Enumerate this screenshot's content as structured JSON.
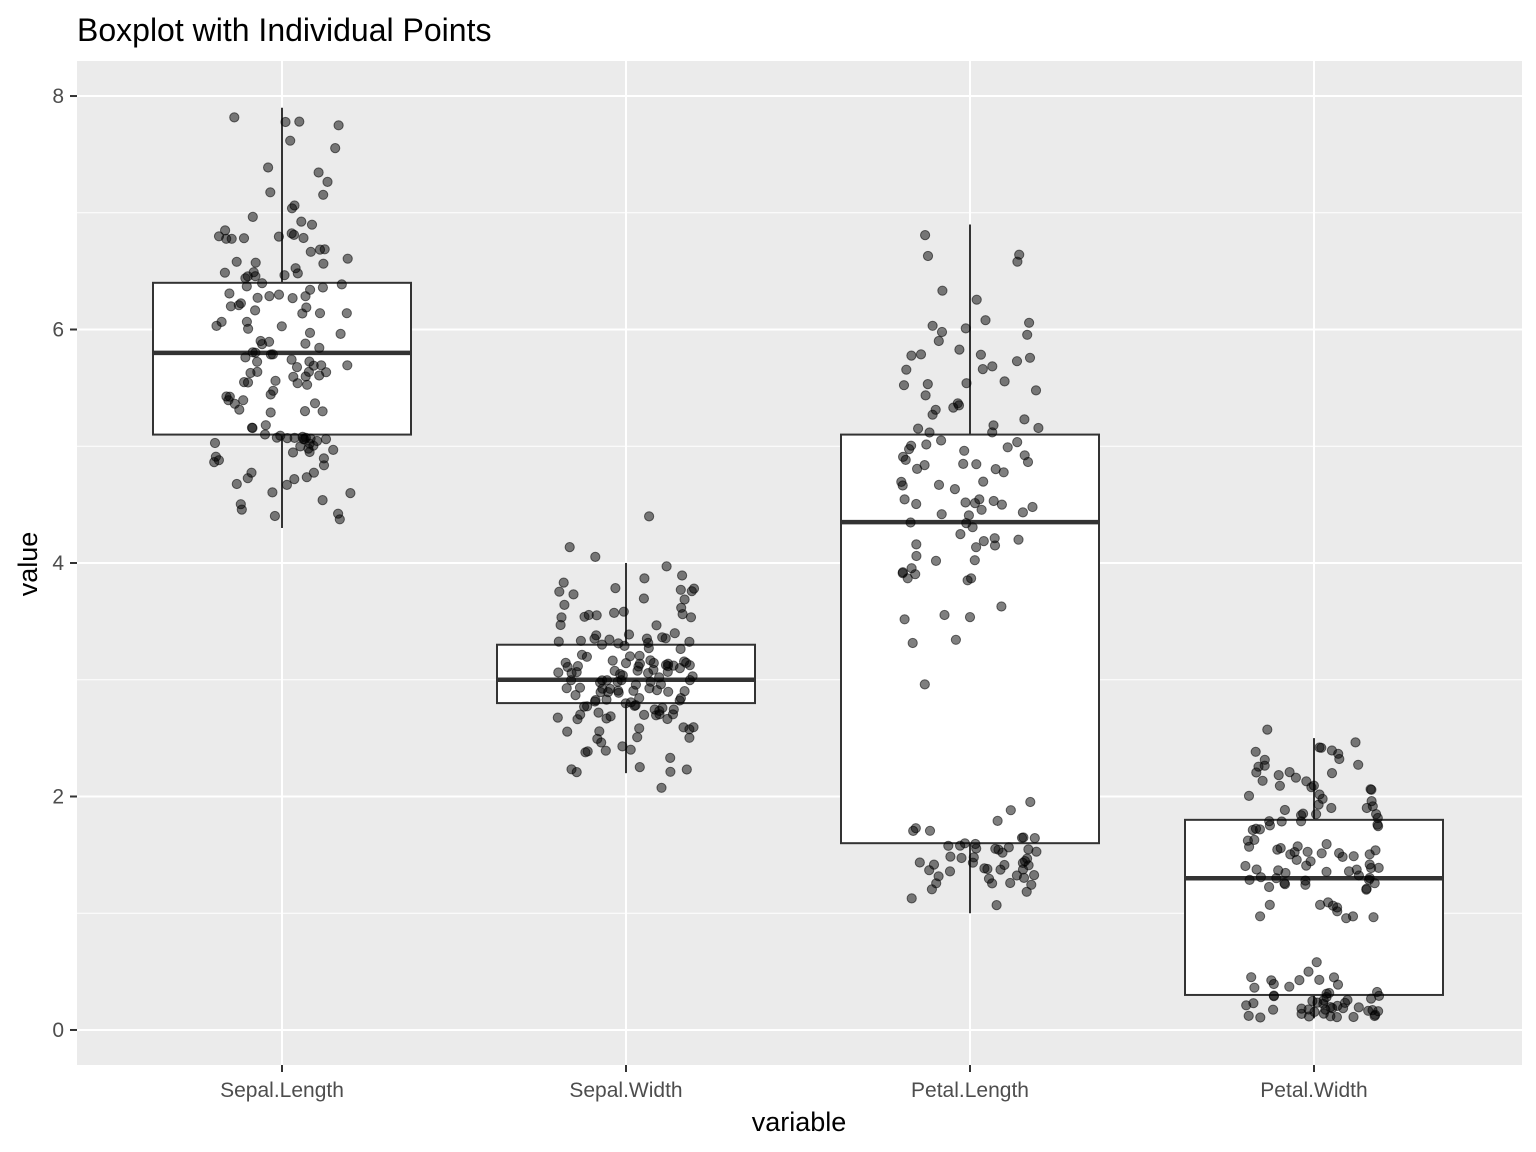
{
  "chart_data": {
    "type": "boxplot",
    "title": "Boxplot with Individual Points",
    "xlabel": "variable",
    "ylabel": "value",
    "ylim": [
      -0.3,
      8.3
    ],
    "yticks": [
      0,
      2,
      4,
      6,
      8
    ],
    "grid": true,
    "legend": "none",
    "categories": [
      "Sepal.Length",
      "Sepal.Width",
      "Petal.Length",
      "Petal.Width"
    ],
    "boxes": [
      {
        "category": "Sepal.Length",
        "min": 4.3,
        "q1": 5.1,
        "median": 5.8,
        "q3": 6.4,
        "max": 7.9
      },
      {
        "category": "Sepal.Width",
        "min": 2.2,
        "q1": 2.8,
        "median": 3.0,
        "q3": 3.3,
        "max": 4.0
      },
      {
        "category": "Petal.Length",
        "min": 1.0,
        "q1": 1.6,
        "median": 4.35,
        "q3": 5.1,
        "max": 6.9
      },
      {
        "category": "Petal.Width",
        "min": 0.1,
        "q1": 0.3,
        "median": 1.3,
        "q3": 1.8,
        "max": 2.5
      }
    ],
    "points": {
      "Sepal.Length": [
        5.1,
        4.9,
        4.7,
        4.6,
        5.0,
        5.4,
        4.6,
        5.0,
        4.4,
        4.9,
        5.4,
        4.8,
        4.8,
        4.3,
        5.8,
        5.7,
        5.4,
        5.1,
        5.7,
        5.1,
        5.4,
        5.1,
        4.6,
        5.1,
        4.8,
        5.0,
        5.0,
        5.2,
        5.2,
        4.7,
        4.8,
        5.4,
        5.2,
        5.5,
        4.9,
        5.0,
        5.5,
        4.9,
        4.4,
        5.1,
        5.0,
        4.5,
        4.4,
        5.0,
        5.1,
        4.8,
        5.1,
        4.6,
        5.3,
        5.0,
        7.0,
        6.4,
        6.9,
        5.5,
        6.5,
        5.7,
        6.3,
        4.9,
        6.6,
        5.2,
        5.0,
        5.9,
        6.0,
        6.1,
        5.6,
        6.7,
        5.6,
        5.8,
        6.2,
        5.6,
        5.9,
        6.1,
        6.3,
        6.1,
        6.4,
        6.6,
        6.8,
        6.7,
        6.0,
        5.7,
        5.5,
        5.5,
        5.8,
        6.0,
        5.4,
        6.0,
        6.7,
        6.3,
        5.6,
        5.5,
        5.5,
        6.1,
        5.8,
        5.0,
        5.6,
        5.7,
        5.7,
        6.2,
        5.1,
        5.7,
        6.3,
        5.8,
        7.1,
        6.3,
        6.5,
        7.6,
        4.9,
        7.3,
        6.7,
        7.2,
        6.5,
        6.4,
        6.8,
        5.7,
        5.8,
        6.4,
        6.5,
        7.7,
        7.7,
        6.0,
        6.9,
        5.6,
        7.7,
        6.3,
        6.7,
        7.2,
        6.2,
        6.1,
        6.4,
        7.2,
        7.4,
        7.9,
        6.4,
        6.3,
        6.1,
        7.7,
        6.3,
        6.4,
        6.0,
        6.9,
        6.7,
        6.9,
        5.8,
        6.8,
        6.7,
        6.7,
        6.3,
        6.5,
        6.2,
        5.9
      ],
      "Sepal.Width": [
        3.5,
        3.0,
        3.2,
        3.1,
        3.6,
        3.9,
        3.4,
        3.4,
        2.9,
        3.1,
        3.7,
        3.4,
        3.0,
        3.0,
        4.0,
        4.4,
        3.9,
        3.5,
        3.8,
        3.8,
        3.4,
        3.7,
        3.6,
        3.3,
        3.4,
        3.0,
        3.4,
        3.5,
        3.4,
        3.2,
        3.1,
        3.4,
        4.1,
        4.2,
        3.1,
        3.2,
        3.5,
        3.6,
        3.0,
        3.4,
        3.5,
        2.3,
        3.2,
        3.5,
        3.8,
        3.0,
        3.8,
        3.2,
        3.7,
        3.3,
        3.2,
        3.2,
        3.1,
        2.3,
        2.8,
        2.8,
        3.3,
        2.4,
        2.9,
        2.7,
        2.0,
        3.0,
        2.2,
        2.9,
        2.9,
        3.1,
        3.0,
        2.7,
        2.2,
        2.5,
        3.2,
        2.8,
        2.5,
        2.8,
        2.9,
        3.0,
        2.8,
        3.0,
        2.9,
        2.6,
        2.4,
        2.4,
        2.7,
        2.7,
        3.0,
        3.4,
        3.1,
        2.3,
        3.0,
        2.5,
        2.6,
        3.0,
        2.6,
        2.3,
        2.7,
        3.0,
        2.9,
        2.9,
        2.5,
        2.8,
        3.3,
        2.7,
        3.0,
        2.9,
        3.0,
        3.0,
        2.5,
        2.9,
        2.5,
        3.6,
        3.2,
        2.7,
        3.0,
        2.5,
        2.8,
        3.2,
        3.0,
        3.8,
        2.6,
        2.2,
        3.2,
        2.8,
        2.8,
        2.7,
        3.3,
        3.2,
        2.8,
        3.0,
        2.8,
        3.0,
        2.8,
        3.8,
        2.8,
        2.8,
        2.6,
        3.0,
        3.4,
        3.1,
        3.0,
        3.1,
        3.1,
        3.1,
        2.7,
        3.2,
        3.3,
        3.0,
        2.5,
        3.0,
        3.4,
        3.0
      ],
      "Petal.Length": [
        1.4,
        1.4,
        1.3,
        1.5,
        1.4,
        1.7,
        1.4,
        1.5,
        1.4,
        1.5,
        1.5,
        1.6,
        1.4,
        1.1,
        1.2,
        1.5,
        1.3,
        1.4,
        1.7,
        1.5,
        1.7,
        1.5,
        1.0,
        1.7,
        1.9,
        1.6,
        1.6,
        1.5,
        1.4,
        1.6,
        1.6,
        1.5,
        1.5,
        1.4,
        1.5,
        1.2,
        1.3,
        1.4,
        1.3,
        1.5,
        1.3,
        1.3,
        1.3,
        1.6,
        1.9,
        1.4,
        1.6,
        1.4,
        1.5,
        1.4,
        4.7,
        4.5,
        4.9,
        4.0,
        4.6,
        4.5,
        4.7,
        3.3,
        4.6,
        3.9,
        3.5,
        4.2,
        4.0,
        4.7,
        3.6,
        4.4,
        4.5,
        4.1,
        4.5,
        3.9,
        4.8,
        4.0,
        4.9,
        4.7,
        4.3,
        4.4,
        4.8,
        5.0,
        4.5,
        3.5,
        3.8,
        3.7,
        3.9,
        5.1,
        4.5,
        4.5,
        4.7,
        4.4,
        4.1,
        4.0,
        4.4,
        4.6,
        4.0,
        3.3,
        4.2,
        4.2,
        4.2,
        4.3,
        3.0,
        4.1,
        6.0,
        5.1,
        5.9,
        5.6,
        5.8,
        6.6,
        4.5,
        6.3,
        5.8,
        6.1,
        5.1,
        5.3,
        5.5,
        5.0,
        5.1,
        5.3,
        5.5,
        6.7,
        6.9,
        5.0,
        5.7,
        4.9,
        6.7,
        4.9,
        5.7,
        6.0,
        4.8,
        4.9,
        5.6,
        5.8,
        6.1,
        6.4,
        5.6,
        5.1,
        5.6,
        6.1,
        5.6,
        5.5,
        4.8,
        5.4,
        5.6,
        5.1,
        5.1,
        5.9,
        5.7,
        5.2,
        5.0,
        5.2,
        5.4,
        5.1
      ],
      "Petal.Width": [
        0.2,
        0.2,
        0.2,
        0.2,
        0.2,
        0.4,
        0.3,
        0.2,
        0.2,
        0.1,
        0.2,
        0.2,
        0.1,
        0.1,
        0.2,
        0.4,
        0.4,
        0.3,
        0.3,
        0.3,
        0.2,
        0.4,
        0.2,
        0.5,
        0.2,
        0.2,
        0.4,
        0.2,
        0.2,
        0.2,
        0.2,
        0.4,
        0.1,
        0.2,
        0.2,
        0.2,
        0.2,
        0.1,
        0.2,
        0.2,
        0.3,
        0.3,
        0.2,
        0.6,
        0.4,
        0.3,
        0.2,
        0.2,
        0.2,
        0.2,
        1.4,
        1.5,
        1.5,
        1.3,
        1.5,
        1.3,
        1.6,
        1.0,
        1.3,
        1.4,
        1.0,
        1.5,
        1.0,
        1.4,
        1.3,
        1.4,
        1.5,
        1.0,
        1.5,
        1.1,
        1.8,
        1.3,
        1.5,
        1.2,
        1.3,
        1.4,
        1.4,
        1.7,
        1.5,
        1.0,
        1.1,
        1.0,
        1.2,
        1.6,
        1.5,
        1.6,
        1.5,
        1.3,
        1.3,
        1.3,
        1.2,
        1.4,
        1.2,
        1.0,
        1.3,
        1.2,
        1.3,
        1.3,
        1.1,
        1.3,
        2.5,
        1.9,
        2.1,
        1.8,
        2.2,
        2.1,
        1.7,
        1.8,
        1.8,
        2.5,
        2.0,
        1.9,
        2.1,
        2.0,
        2.4,
        2.3,
        1.8,
        2.2,
        2.3,
        1.5,
        2.3,
        2.0,
        2.0,
        1.8,
        2.1,
        1.8,
        1.8,
        1.8,
        2.1,
        1.6,
        1.9,
        2.0,
        2.2,
        1.5,
        1.4,
        2.3,
        2.4,
        1.8,
        1.8,
        2.1,
        2.4,
        2.3,
        1.9,
        2.3,
        2.5,
        2.3,
        1.9,
        2.0,
        2.3,
        1.8
      ]
    }
  }
}
